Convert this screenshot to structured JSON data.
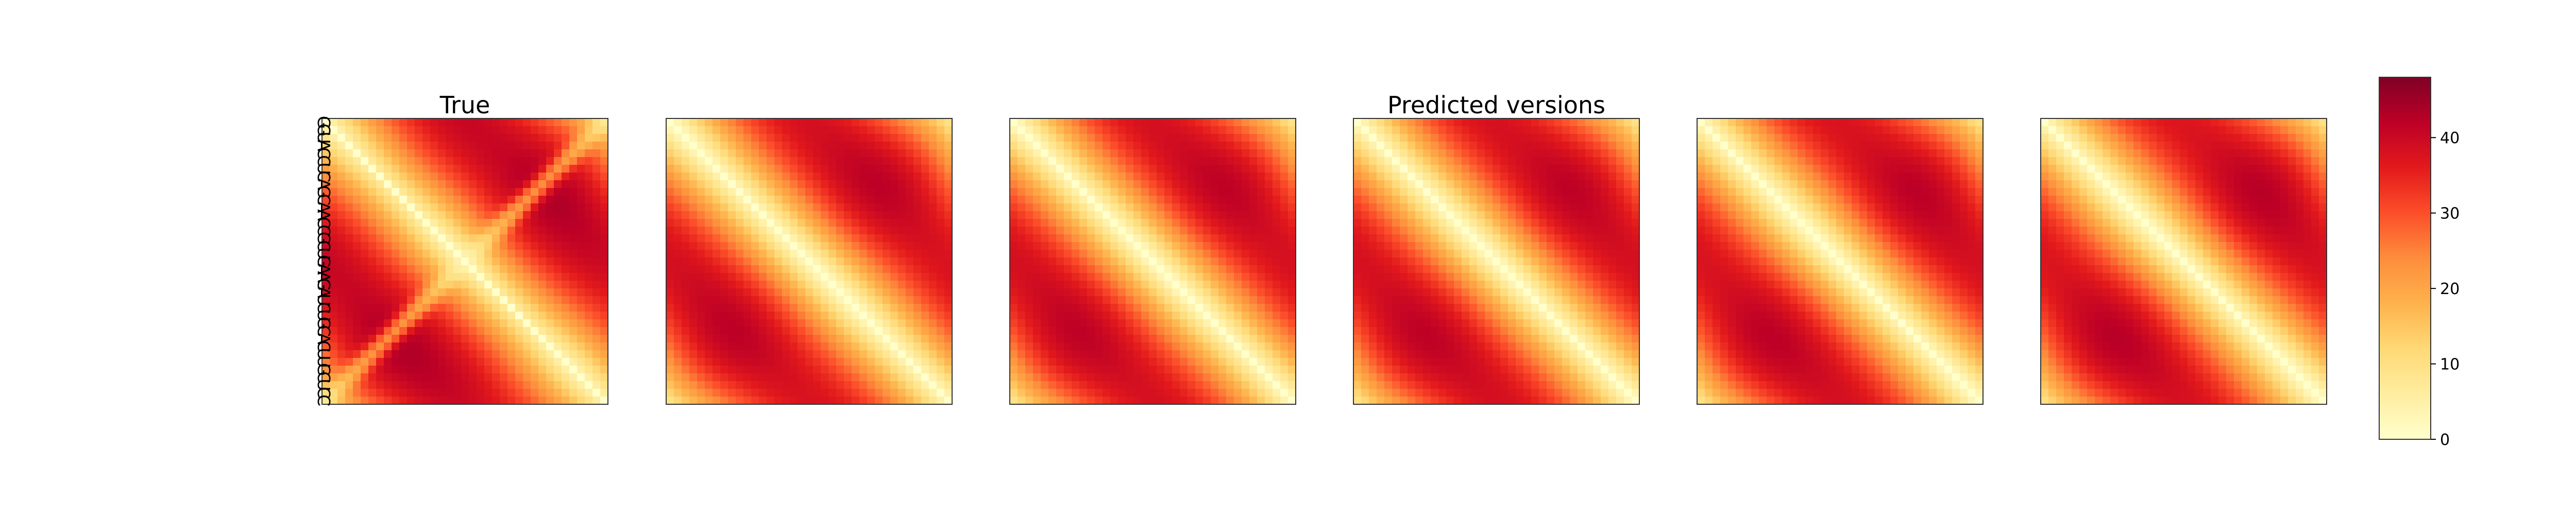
{
  "chart_data": {
    "type": "heatmap",
    "colormap": "YlOrRd",
    "panels": [
      {
        "title": "True",
        "variant": "true"
      },
      {
        "title": "",
        "variant": "pred1"
      },
      {
        "title": "",
        "variant": "pred2"
      },
      {
        "title": "Predicted versions",
        "variant": "pred3"
      },
      {
        "title": "",
        "variant": "pred4"
      },
      {
        "title": "",
        "variant": "pred5"
      }
    ],
    "sequence": [
      "G",
      "G",
      "U",
      "A",
      "C",
      "C",
      "U",
      "C",
      "A",
      "G",
      "C",
      "A",
      "A",
      "C",
      "C",
      "G",
      "C",
      "U",
      "G",
      "A",
      "A",
      "G",
      "A",
      "U",
      "C",
      "U",
      "G",
      "C",
      "A",
      "C",
      "U",
      "U",
      "G",
      "C",
      "U",
      "C",
      "C"
    ],
    "colorbar": {
      "min": 0,
      "max": 48,
      "ticks": [
        0,
        10,
        20,
        30,
        40
      ]
    }
  }
}
